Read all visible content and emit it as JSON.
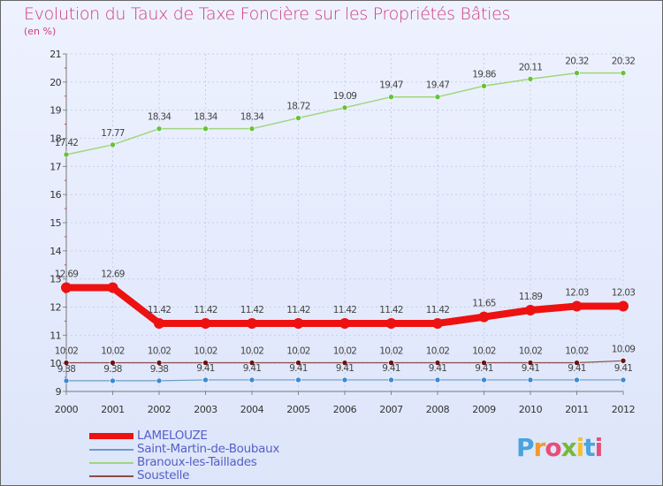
{
  "title": "Evolution du Taux de Taxe Foncière sur les Propriétés Bâties",
  "unit": "(en %)",
  "logo": {
    "text": "Proxiti",
    "letters": [
      "P",
      "r",
      "o",
      "x",
      "i",
      "t",
      "i"
    ],
    "colors": [
      "#4aa3df",
      "#f2992e",
      "#e94e77",
      "#79b73c",
      "#f2c12e",
      "#4aa3df",
      "#e94e77"
    ]
  },
  "chart_data": {
    "type": "line",
    "title": "Evolution du Taux de Taxe Foncière sur les Propriétés Bâties",
    "ylabel": "(en %)",
    "xlabel": "",
    "ylim": [
      9,
      21
    ],
    "y_ticks": [
      "9",
      "10",
      "11",
      "12",
      "13",
      "14",
      "15",
      "16",
      "17",
      "18",
      "19",
      "20",
      "21"
    ],
    "categories": [
      "2000",
      "2001",
      "2002",
      "2003",
      "2004",
      "2005",
      "2006",
      "2007",
      "2008",
      "2009",
      "2010",
      "2011",
      "2012"
    ],
    "series": [
      {
        "name": "LAMELOUZE",
        "color": "#ee1111",
        "marker": "#ee1111",
        "values": [
          12.69,
          12.69,
          11.42,
          11.42,
          11.42,
          11.42,
          11.42,
          11.42,
          11.42,
          11.65,
          11.89,
          12.03,
          12.03
        ],
        "labels": [
          "12.69",
          "12.69",
          "11.42",
          "11.42",
          "11.42",
          "11.42",
          "11.42",
          "11.42",
          "11.42",
          "11.65",
          "11.89",
          "12.03",
          "12.03"
        ]
      },
      {
        "name": "Saint-Martin-de-Boubaux",
        "color": "#6a9cc6",
        "marker": "#3a8ad6",
        "values": [
          9.38,
          9.38,
          9.38,
          9.41,
          9.41,
          9.41,
          9.41,
          9.41,
          9.41,
          9.41,
          9.41,
          9.41,
          9.41
        ],
        "labels": [
          "9.38",
          "9.38",
          "9.38",
          "9.41",
          "9.41",
          "9.41",
          "9.41",
          "9.41",
          "9.41",
          "9.41",
          "9.41",
          "9.41",
          "9.41"
        ]
      },
      {
        "name": "Branoux-les-Taillades",
        "color": "#9fd67a",
        "marker": "#66c23a",
        "values": [
          17.42,
          17.77,
          18.34,
          18.34,
          18.34,
          18.72,
          19.09,
          19.47,
          19.47,
          19.86,
          20.11,
          20.32,
          20.32
        ],
        "labels": [
          "17.42",
          "17.77",
          "18.34",
          "18.34",
          "18.34",
          "18.72",
          "19.09",
          "19.47",
          "19.47",
          "19.86",
          "20.11",
          "20.32",
          "20.32"
        ]
      },
      {
        "name": "Soustelle",
        "color": "#8b4a4a",
        "marker": "#6b1111",
        "values": [
          10.02,
          10.02,
          10.02,
          10.02,
          10.02,
          10.02,
          10.02,
          10.02,
          10.02,
          10.02,
          10.02,
          10.02,
          10.09
        ],
        "labels": [
          "10.02",
          "10.02",
          "10.02",
          "10.02",
          "10.02",
          "10.02",
          "10.02",
          "10.02",
          "10.02",
          "10.02",
          "10.02",
          "10.02",
          "10.09"
        ]
      }
    ]
  },
  "legend": [
    {
      "label": "LAMELOUZE",
      "color": "#ee1111"
    },
    {
      "label": "Saint-Martin-de-Boubaux",
      "color": "#6a9cc6"
    },
    {
      "label": "Branoux-les-Taillades",
      "color": "#9fd67a"
    },
    {
      "label": "Soustelle",
      "color": "#8b4a4a"
    }
  ]
}
